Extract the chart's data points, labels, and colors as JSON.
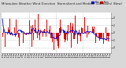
{
  "bg_color": "#d8d8d8",
  "plot_bg_color": "#ffffff",
  "grid_color": "#aaaaaa",
  "bar_color": "#dd0000",
  "median_color": "#0000cc",
  "legend_color1": "#0000cc",
  "legend_color2": "#cc0000",
  "ylim": [
    -5.5,
    5.5
  ],
  "n_points": 288,
  "seed": 7,
  "title_fontsize": 2.8,
  "tick_fontsize": 2.0,
  "y_ticks": [
    -4,
    -2,
    0,
    2,
    4
  ],
  "n_xticks": 48
}
